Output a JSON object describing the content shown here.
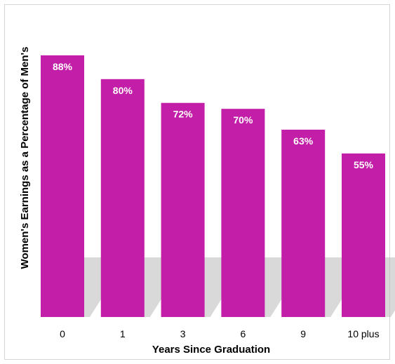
{
  "chart_data": {
    "type": "bar",
    "categories": [
      "0",
      "1",
      "3",
      "6",
      "9",
      "10 plus"
    ],
    "values": [
      88,
      80,
      72,
      70,
      63,
      55
    ],
    "value_labels": [
      "88%",
      "80%",
      "72%",
      "70%",
      "63%",
      "55%"
    ],
    "xlabel": "Years Since Graduation",
    "ylabel": "Women's Earnings as a Percentage of Men's",
    "ylim": [
      0,
      100
    ],
    "grid": false,
    "legend": "none",
    "bar_color": "#c21ea8"
  }
}
